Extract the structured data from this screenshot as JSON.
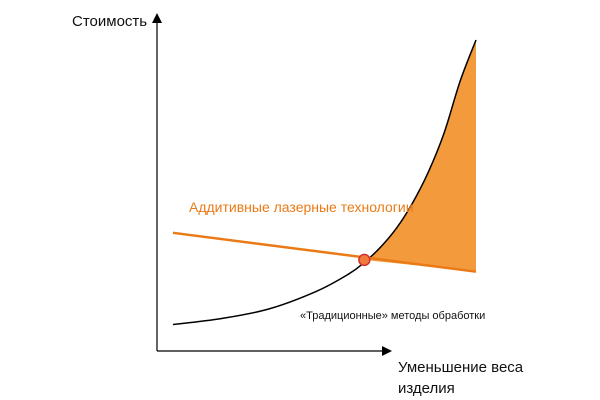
{
  "chart_data": {
    "type": "line",
    "title": "",
    "ylabel": "Стоимость",
    "xlabel_lines": [
      "Уменьшение веса",
      "изделия"
    ],
    "x_range": [
      0,
      100
    ],
    "y_range": [
      0,
      100
    ],
    "grid": false,
    "legend": "none",
    "series": [
      {
        "name": "Аддитивные лазерные технологии",
        "color": "#ea7a16",
        "x": [
          5,
          100
        ],
        "y": [
          38,
          25.5
        ]
      },
      {
        "name": "«Традиционные» методы обработки",
        "color": "#000000",
        "x": [
          5,
          20,
          35,
          50,
          60,
          65,
          70,
          75,
          80,
          85,
          90,
          95,
          100
        ],
        "y": [
          8.5,
          10.4,
          13.5,
          19.2,
          24.7,
          28.5,
          33.3,
          39.4,
          47.4,
          57.4,
          70.1,
          86.7,
          100
        ]
      }
    ],
    "highlight": {
      "region": "between curves after intersection",
      "color": "#f39a3d"
    },
    "intersection_marker": {
      "x": 65,
      "y": 29.3,
      "fill": "#f07a3a",
      "stroke": "#d32f2f"
    }
  }
}
